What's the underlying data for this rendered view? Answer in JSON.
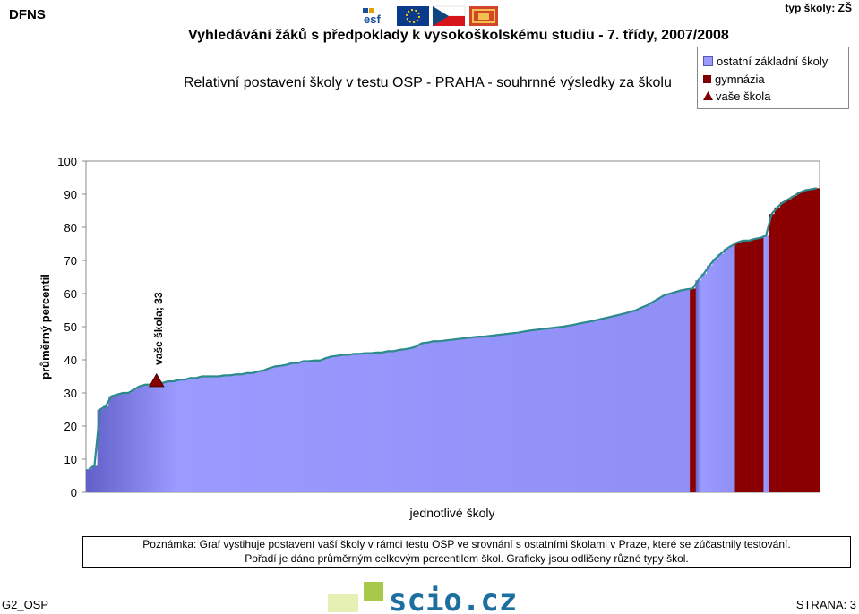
{
  "header": {
    "code": "DFNS",
    "school_type": "typ školy: ZŠ",
    "logos": [
      "esf-logo",
      "eu-flag",
      "czech-flag",
      "prague-emblem"
    ]
  },
  "subtitle": "Vyhledávání žáků s předpoklady k vysokoškolskému studiu - 7. třídy, 2007/2008",
  "title": "Relativní postavení školy v testu OSP - PRAHA - souhrnné výsledky za školu",
  "legend": [
    {
      "label": "ostatní základní školy",
      "color": "#9999ff",
      "shape": "square"
    },
    {
      "label": "gymnázia",
      "color": "#800000",
      "shape": "square"
    },
    {
      "label": "vaše škola",
      "color": "#800000",
      "shape": "triangle"
    }
  ],
  "chart_data": {
    "type": "area",
    "ylabel": "průměrný percentil",
    "xlabel": "jednotlivé školy",
    "ylim": [
      0,
      100
    ],
    "yticks": [
      0,
      10,
      20,
      30,
      40,
      50,
      60,
      70,
      80,
      90,
      100
    ],
    "line_color": "#2b8a8a",
    "series": [
      {
        "name": "ostatní základní školy",
        "values": [
          7,
          8,
          25,
          26,
          29,
          29.5,
          30,
          30,
          31,
          32,
          32.5,
          32.5,
          33,
          33,
          33.5,
          33.5,
          34,
          34,
          34.5,
          34.5,
          35,
          35,
          35,
          35,
          35.3,
          35.3,
          35.6,
          35.6,
          36,
          36,
          36.5,
          36.8,
          37.5,
          38,
          38.2,
          38.5,
          39,
          39,
          39.6,
          39.6,
          39.8,
          39.8,
          40.5,
          41,
          41.2,
          41.5,
          41.5,
          41.8,
          41.8,
          42,
          42,
          42.2,
          42.2,
          42.6,
          42.6,
          43,
          43.2,
          43.5,
          44,
          45,
          45.2,
          45.6,
          45.6,
          45.8,
          46,
          46.2,
          46.4,
          46.6,
          46.8,
          47,
          47,
          47.2,
          47.4,
          47.6,
          47.8,
          48,
          48.2,
          48.5,
          48.8,
          49,
          49.2,
          49.4,
          49.6,
          49.8,
          50,
          50.3,
          50.6,
          51,
          51.3,
          51.6,
          52,
          52.4,
          52.8,
          53.2,
          53.6,
          54,
          54.5,
          55,
          55.8,
          56.5,
          57.5,
          58.5,
          59.5,
          60,
          60.5,
          61,
          61.3,
          null,
          64,
          66,
          68.5,
          70.5,
          72,
          73.5,
          74.5,
          null,
          null,
          null,
          null,
          null,
          77.5,
          null,
          null,
          null,
          null,
          null,
          null,
          null,
          null,
          null
        ]
      },
      {
        "name": "gymnázia",
        "values": [
          null,
          null,
          null,
          null,
          null,
          null,
          null,
          null,
          null,
          null,
          null,
          null,
          null,
          null,
          null,
          null,
          null,
          null,
          null,
          null,
          null,
          null,
          null,
          null,
          null,
          null,
          null,
          null,
          null,
          null,
          null,
          null,
          null,
          null,
          null,
          null,
          null,
          null,
          null,
          null,
          null,
          null,
          null,
          null,
          null,
          null,
          null,
          null,
          null,
          null,
          null,
          null,
          null,
          null,
          null,
          null,
          null,
          null,
          null,
          null,
          null,
          null,
          null,
          null,
          null,
          null,
          null,
          null,
          null,
          null,
          null,
          null,
          null,
          null,
          null,
          null,
          null,
          null,
          null,
          null,
          null,
          null,
          null,
          null,
          null,
          null,
          null,
          null,
          null,
          null,
          null,
          null,
          null,
          null,
          null,
          null,
          null,
          null,
          null,
          null,
          null,
          null,
          null,
          null,
          null,
          null,
          null,
          61.5,
          null,
          null,
          null,
          null,
          null,
          null,
          null,
          75.5,
          76,
          76,
          76.5,
          76.8,
          null,
          84,
          86,
          87.5,
          88.5,
          89.5,
          90.5,
          91.2,
          91.5,
          91.8,
          92
        ]
      }
    ],
    "school_marker": {
      "index": 12,
      "value": 33,
      "label": "vaše škola; 33"
    }
  },
  "note": {
    "line1": "Poznámka: Graf vystihuje postavení vaší školy v rámci testu OSP ve srovnání s ostatními školami v Praze, které se zúčastnily testování.",
    "line2": "Pořadí je dáno průměrným celkovým percentilem škol. Graficky jsou odlišeny různé typy škol."
  },
  "footer": {
    "left": "G2_OSP",
    "right": "STRANA: 3",
    "logo_text": "scio.cz"
  }
}
